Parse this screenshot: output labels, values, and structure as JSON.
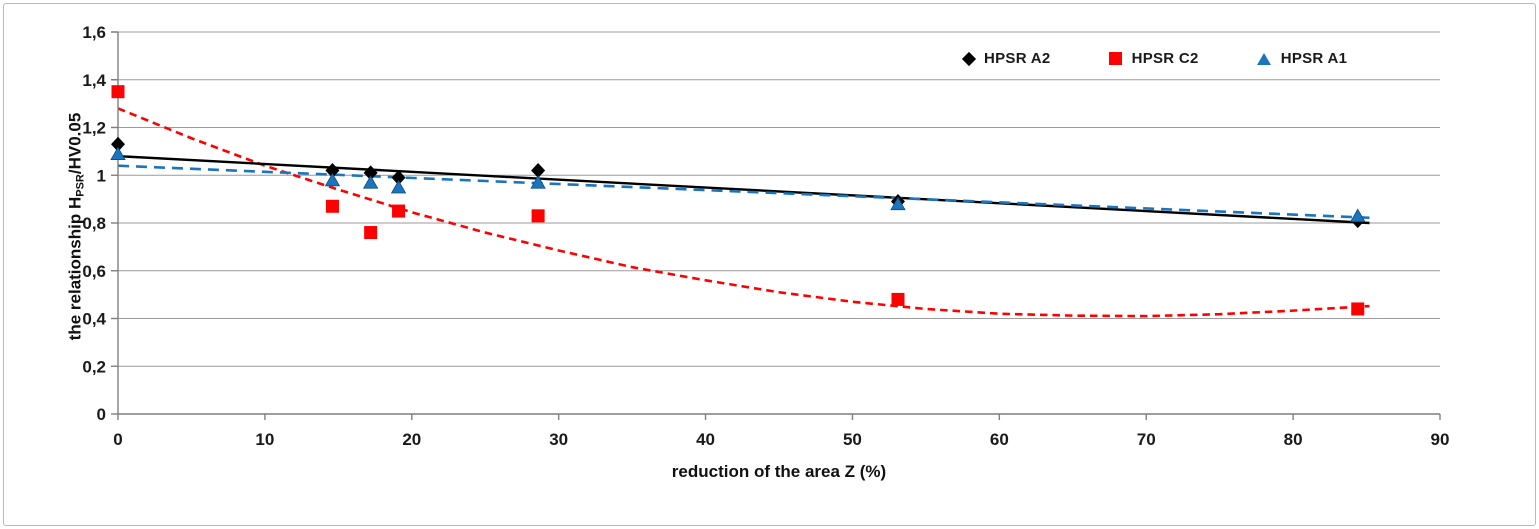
{
  "figure": {
    "background": "#ffffff",
    "border_color": "#b9b9b9",
    "gridline_color": "#9b9b9b",
    "axis_color": "#7f7f7f",
    "text_color": "#1a1a1a"
  },
  "chart_data": {
    "type": "scatter",
    "title": "",
    "xlabel": "reduction of the area Z (%)",
    "ylabel": "the relationship HPSR/HV0.05",
    "ylabel_parts": {
      "pre": "the relationship H",
      "sub": "PSR",
      "post": "/HV0.05"
    },
    "xlim": [
      0,
      90
    ],
    "ylim": [
      0,
      1.6
    ],
    "decimal_separator": ",",
    "grid": "horizontal-only",
    "legend_position": "inside-top-right",
    "xticks": {
      "values": [
        0,
        10,
        20,
        30,
        40,
        50,
        60,
        70,
        80,
        90
      ],
      "labels": [
        "0",
        "10",
        "20",
        "30",
        "40",
        "50",
        "60",
        "70",
        "80",
        "90"
      ]
    },
    "yticks": {
      "values": [
        0,
        0.2,
        0.4,
        0.6,
        0.8,
        1,
        1.2,
        1.4,
        1.6
      ],
      "labels": [
        "0",
        "0,2",
        "0,4",
        "0,6",
        "0,8",
        "1",
        "1,2",
        "1,4",
        "1,6"
      ]
    },
    "series": [
      {
        "name": "HPSR A2",
        "marker": "diamond",
        "color": "#000000",
        "points": [
          [
            0,
            1.13
          ],
          [
            14.6,
            1.02
          ],
          [
            17.2,
            1.01
          ],
          [
            19.1,
            0.99
          ],
          [
            28.6,
            1.02
          ],
          [
            53.1,
            0.89
          ],
          [
            84.4,
            0.81
          ]
        ],
        "trendline": {
          "shape": "linear",
          "style": "solid",
          "points": [
            [
              0,
              1.08
            ],
            [
              85.2,
              0.8
            ]
          ]
        }
      },
      {
        "name": "HPSR C2",
        "marker": "square",
        "color": "#ff0000",
        "points": [
          [
            0,
            1.35
          ],
          [
            14.6,
            0.87
          ],
          [
            17.2,
            0.76
          ],
          [
            19.1,
            0.85
          ],
          [
            28.6,
            0.83
          ],
          [
            53.1,
            0.48
          ],
          [
            84.4,
            0.44
          ]
        ],
        "trendline": {
          "shape": "polynomial",
          "style": "dashed",
          "points": [
            [
              0,
              1.28
            ],
            [
              5,
              1.155
            ],
            [
              10,
              1.04
            ],
            [
              15,
              0.94
            ],
            [
              20,
              0.845
            ],
            [
              25,
              0.76
            ],
            [
              30,
              0.685
            ],
            [
              35,
              0.615
            ],
            [
              40,
              0.56
            ],
            [
              45,
              0.51
            ],
            [
              50,
              0.47
            ],
            [
              55,
              0.44
            ],
            [
              60,
              0.42
            ],
            [
              65,
              0.412
            ],
            [
              70,
              0.41
            ],
            [
              75,
              0.418
            ],
            [
              80,
              0.433
            ],
            [
              85.2,
              0.452
            ]
          ]
        }
      },
      {
        "name": "HPSR A1",
        "marker": "triangle",
        "color": "#1b75bc",
        "points": [
          [
            0,
            1.09
          ],
          [
            14.6,
            0.98
          ],
          [
            17.2,
            0.97
          ],
          [
            19.1,
            0.95
          ],
          [
            28.6,
            0.97
          ],
          [
            53.1,
            0.88
          ],
          [
            84.4,
            0.83
          ]
        ],
        "trendline": {
          "shape": "linear",
          "style": "dashed",
          "points": [
            [
              0,
              1.04
            ],
            [
              85.2,
              0.822
            ]
          ]
        }
      }
    ],
    "legend": [
      {
        "label": "HPSR A2",
        "marker": "diamond",
        "color": "#000000"
      },
      {
        "label": "HPSR C2",
        "marker": "square",
        "color": "#ff0000"
      },
      {
        "label": "HPSR A1",
        "marker": "triangle",
        "color": "#1b75bc"
      }
    ]
  }
}
